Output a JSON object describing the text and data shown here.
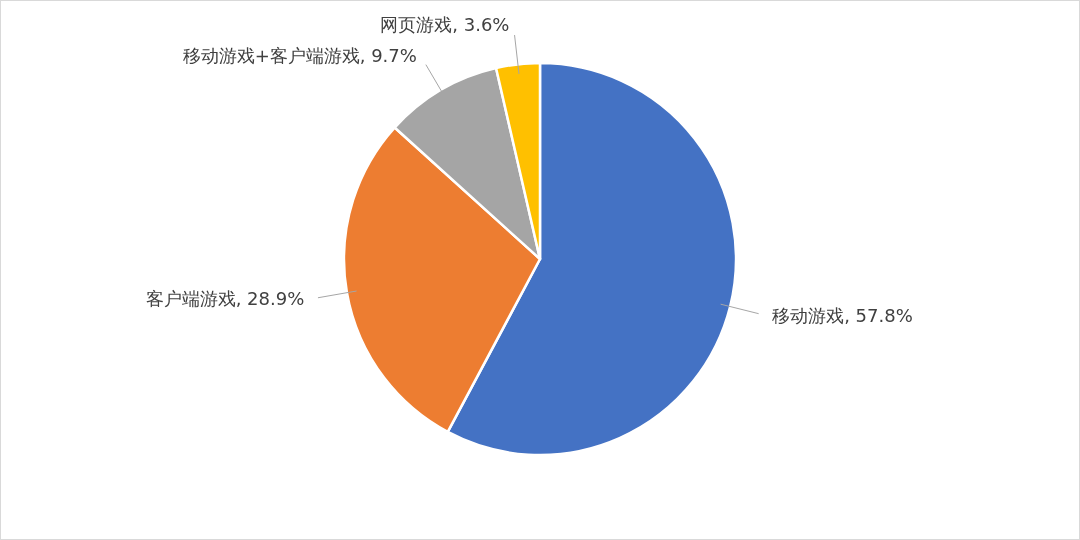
{
  "chart_data": {
    "type": "pie",
    "categories": [
      "移动游戏",
      "客户端游戏",
      "移动游戏+客户端游戏",
      "网页游戏"
    ],
    "values": [
      57.8,
      28.9,
      9.7,
      3.6
    ],
    "value_labels": [
      "57.8%",
      "28.9%",
      "9.7%",
      "3.6%"
    ],
    "colors": [
      "#4472c4",
      "#ed7d31",
      "#a5a5a5",
      "#ffc000"
    ]
  }
}
